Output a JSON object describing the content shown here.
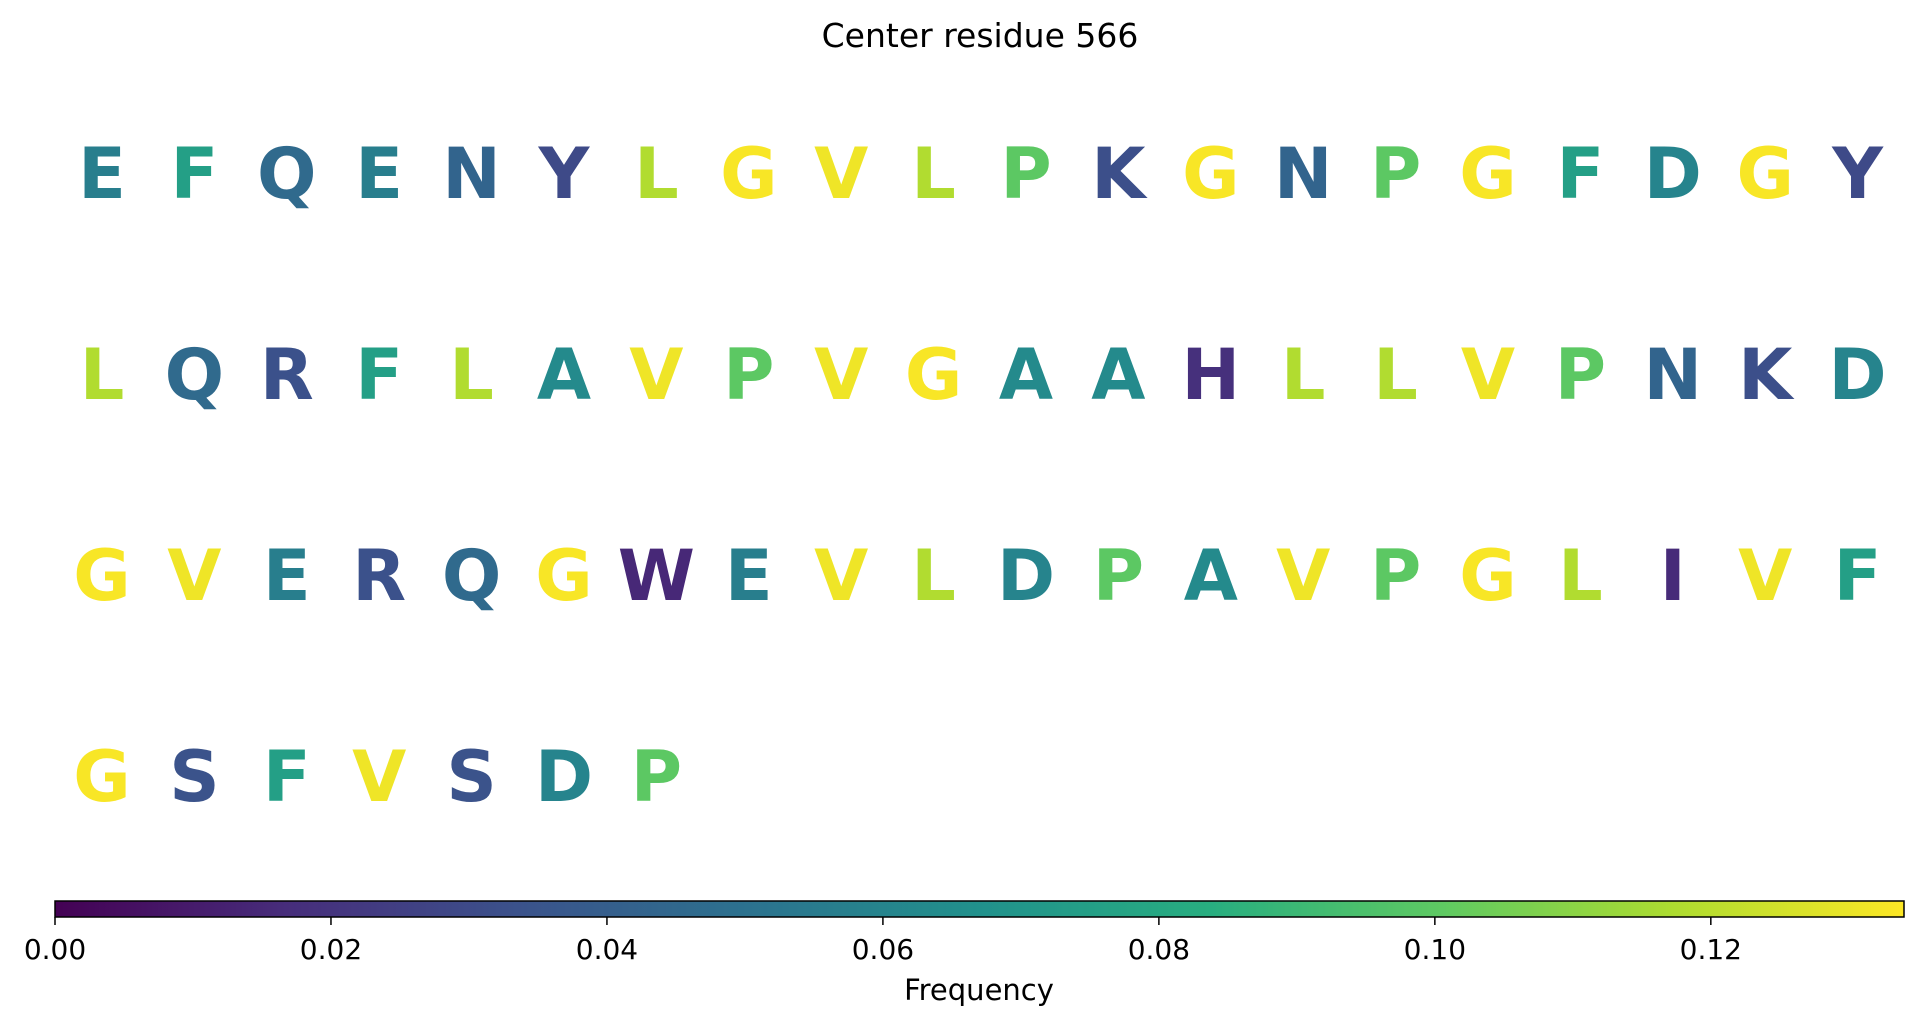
{
  "chart_data": {
    "type": "heatmap",
    "title": "Center residue 566",
    "colormap": "viridis",
    "residues": [
      {
        "letter": "E",
        "value": 0.057
      },
      {
        "letter": "F",
        "value": 0.075
      },
      {
        "letter": "Q",
        "value": 0.046
      },
      {
        "letter": "E",
        "value": 0.057
      },
      {
        "letter": "N",
        "value": 0.043
      },
      {
        "letter": "Y",
        "value": 0.03
      },
      {
        "letter": "L",
        "value": 0.118
      },
      {
        "letter": "G",
        "value": 0.133
      },
      {
        "letter": "V",
        "value": 0.131
      },
      {
        "letter": "L",
        "value": 0.118
      },
      {
        "letter": "P",
        "value": 0.1
      },
      {
        "letter": "K",
        "value": 0.032
      },
      {
        "letter": "G",
        "value": 0.133
      },
      {
        "letter": "N",
        "value": 0.043
      },
      {
        "letter": "P",
        "value": 0.1
      },
      {
        "letter": "G",
        "value": 0.133
      },
      {
        "letter": "F",
        "value": 0.075
      },
      {
        "letter": "D",
        "value": 0.06
      },
      {
        "letter": "G",
        "value": 0.133
      },
      {
        "letter": "Y",
        "value": 0.03
      },
      {
        "letter": "L",
        "value": 0.118
      },
      {
        "letter": "Q",
        "value": 0.046
      },
      {
        "letter": "R",
        "value": 0.033
      },
      {
        "letter": "F",
        "value": 0.075
      },
      {
        "letter": "L",
        "value": 0.118
      },
      {
        "letter": "A",
        "value": 0.063
      },
      {
        "letter": "V",
        "value": 0.131
      },
      {
        "letter": "P",
        "value": 0.1
      },
      {
        "letter": "V",
        "value": 0.131
      },
      {
        "letter": "G",
        "value": 0.133
      },
      {
        "letter": "A",
        "value": 0.063
      },
      {
        "letter": "A",
        "value": 0.063
      },
      {
        "letter": "H",
        "value": 0.018
      },
      {
        "letter": "L",
        "value": 0.118
      },
      {
        "letter": "L",
        "value": 0.118
      },
      {
        "letter": "V",
        "value": 0.131
      },
      {
        "letter": "P",
        "value": 0.1
      },
      {
        "letter": "N",
        "value": 0.043
      },
      {
        "letter": "K",
        "value": 0.032
      },
      {
        "letter": "D",
        "value": 0.06
      },
      {
        "letter": "G",
        "value": 0.133
      },
      {
        "letter": "V",
        "value": 0.131
      },
      {
        "letter": "E",
        "value": 0.057
      },
      {
        "letter": "R",
        "value": 0.033
      },
      {
        "letter": "Q",
        "value": 0.046
      },
      {
        "letter": "G",
        "value": 0.133
      },
      {
        "letter": "W",
        "value": 0.015
      },
      {
        "letter": "E",
        "value": 0.057
      },
      {
        "letter": "V",
        "value": 0.131
      },
      {
        "letter": "L",
        "value": 0.118
      },
      {
        "letter": "D",
        "value": 0.06
      },
      {
        "letter": "P",
        "value": 0.1
      },
      {
        "letter": "A",
        "value": 0.063
      },
      {
        "letter": "V",
        "value": 0.131
      },
      {
        "letter": "P",
        "value": 0.1
      },
      {
        "letter": "G",
        "value": 0.133
      },
      {
        "letter": "L",
        "value": 0.118
      },
      {
        "letter": "I",
        "value": 0.016
      },
      {
        "letter": "V",
        "value": 0.131
      },
      {
        "letter": "F",
        "value": 0.075
      },
      {
        "letter": "G",
        "value": 0.133
      },
      {
        "letter": "S",
        "value": 0.034
      },
      {
        "letter": "F",
        "value": 0.075
      },
      {
        "letter": "V",
        "value": 0.131
      },
      {
        "letter": "S",
        "value": 0.034
      },
      {
        "letter": "D",
        "value": 0.06
      },
      {
        "letter": "P",
        "value": 0.1
      }
    ],
    "colorbar": {
      "label": "Frequency",
      "range": [
        0,
        0.134
      ],
      "ticks": [
        0.0,
        0.02,
        0.04,
        0.06,
        0.08,
        0.1,
        0.12
      ],
      "tick_labels": [
        "0.00",
        "0.02",
        "0.04",
        "0.06",
        "0.08",
        "0.10",
        "0.12"
      ]
    }
  }
}
